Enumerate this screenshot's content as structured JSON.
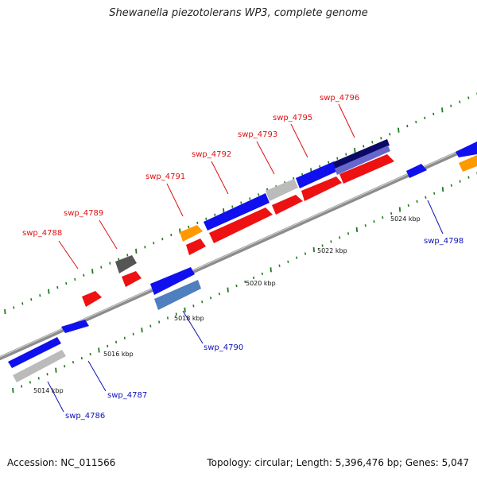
{
  "title": "Shewanella piezotolerans WP3, complete genome",
  "footer": {
    "accession": "Accession: NC_011566",
    "topology": "Topology: circular; Length: 5,396,476 bp; Genes: 5,047"
  },
  "colors": {
    "forward_label": "#dd1111",
    "reverse_label": "#1010bb",
    "backbone": "#8c8c8c",
    "tick": "#1e7a1e",
    "blue": "#1010ee",
    "red": "#ee1111",
    "orange": "#ff9900",
    "gray": "#bbbbbb",
    "darkgray": "#555555",
    "steelblue": "#4f7fbf",
    "navy": "#0a0a66",
    "purple": "#6666cc"
  },
  "kbp_labels": [
    "5014 kbp",
    "5016 kbp",
    "5018 kbp",
    "5020 kbp",
    "5022 kbp",
    "5024 kbp"
  ],
  "gene_labels": {
    "top": [
      "swp_4788",
      "swp_4789",
      "swp_4791",
      "swp_4792",
      "swp_4793",
      "swp_4795",
      "swp_4796"
    ],
    "bottom": [
      "swp_4786",
      "swp_4787",
      "swp_4790",
      "swp_4798"
    ]
  }
}
